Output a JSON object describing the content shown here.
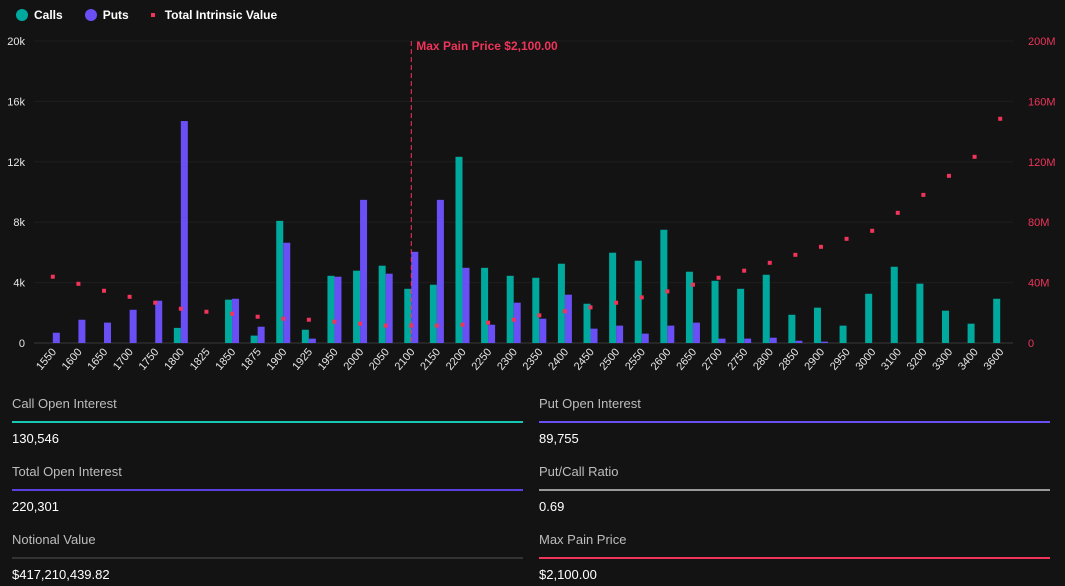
{
  "legend": {
    "calls": "Calls",
    "puts": "Puts",
    "tiv": "Total Intrinsic Value"
  },
  "colors": {
    "calls": "#00a99d",
    "puts": "#6b4ff6",
    "tiv": "#f0345a",
    "background": "#131313"
  },
  "chart_data": {
    "type": "bar",
    "categories": [
      "1550",
      "1600",
      "1650",
      "1700",
      "1750",
      "1800",
      "1825",
      "1850",
      "1875",
      "1900",
      "1925",
      "1950",
      "2000",
      "2050",
      "2100",
      "2150",
      "2200",
      "2250",
      "2300",
      "2350",
      "2400",
      "2450",
      "2500",
      "2550",
      "2600",
      "2650",
      "2700",
      "2750",
      "2800",
      "2850",
      "2900",
      "2950",
      "3000",
      "3100",
      "3200",
      "3300",
      "3400",
      "3600"
    ],
    "series": [
      {
        "name": "Calls",
        "type": "bar",
        "axis": "left",
        "values": [
          0,
          0,
          0,
          0,
          0,
          1000,
          0,
          2870,
          490,
          8090,
          880,
          4450,
          4790,
          5120,
          3590,
          3860,
          12330,
          4980,
          4450,
          4320,
          5250,
          2600,
          5980,
          5450,
          7500,
          4720,
          4120,
          3590,
          4520,
          1870,
          2340,
          1150,
          3260,
          5050,
          3930,
          2140,
          1280,
          2930
        ]
      },
      {
        "name": "Puts",
        "type": "bar",
        "axis": "left",
        "values": [
          680,
          1540,
          1350,
          2200,
          2800,
          14700,
          0,
          2930,
          1080,
          6640,
          290,
          4390,
          9480,
          4590,
          6040,
          9480,
          4980,
          1210,
          2670,
          1610,
          3200,
          950,
          1150,
          620,
          1150,
          1350,
          290,
          290,
          350,
          150,
          90,
          0,
          0,
          0,
          0,
          0,
          0,
          0
        ]
      },
      {
        "name": "Total Intrinsic Value",
        "type": "scatter",
        "axis": "right",
        "values": [
          43900000,
          39200000,
          34600000,
          30600000,
          26700000,
          22700000,
          20700000,
          19400000,
          17400000,
          16100000,
          15400000,
          14100000,
          12800000,
          11500000,
          11500000,
          11500000,
          12100000,
          13500000,
          15400000,
          18300000,
          21000000,
          23600000,
          26700000,
          30200000,
          34200000,
          38600000,
          43200000,
          47900000,
          53100000,
          58400000,
          63700000,
          69000000,
          74300000,
          86200000,
          98100000,
          110700000,
          123300000,
          148500000
        ]
      }
    ],
    "y_left": {
      "range": [
        0,
        20000
      ],
      "ticks": [
        "0",
        "4k",
        "8k",
        "12k",
        "16k",
        "20k"
      ]
    },
    "y_right": {
      "range": [
        0,
        200000000
      ],
      "ticks": [
        "0",
        "40M",
        "80M",
        "120M",
        "160M",
        "200M"
      ]
    },
    "grid": true,
    "legend_position": "top-left",
    "annotation": {
      "category": "2100",
      "label": "Max Pain Price $2,100.00"
    }
  },
  "stats": [
    {
      "label": "Call Open Interest",
      "value": "130,546",
      "color": "#14c8b4"
    },
    {
      "label": "Put Open Interest",
      "value": "89,755",
      "color": "#6a4ff5"
    },
    {
      "label": "Total Open Interest",
      "value": "220,301",
      "color": "#5b3fe0"
    },
    {
      "label": "Put/Call Ratio",
      "value": "0.69",
      "color": "#9a9a9a"
    },
    {
      "label": "Notional Value",
      "value": "$417,210,439.82",
      "color": "#333333"
    },
    {
      "label": "Max Pain Price",
      "value": "$2,100.00",
      "color": "#f0345a"
    }
  ]
}
